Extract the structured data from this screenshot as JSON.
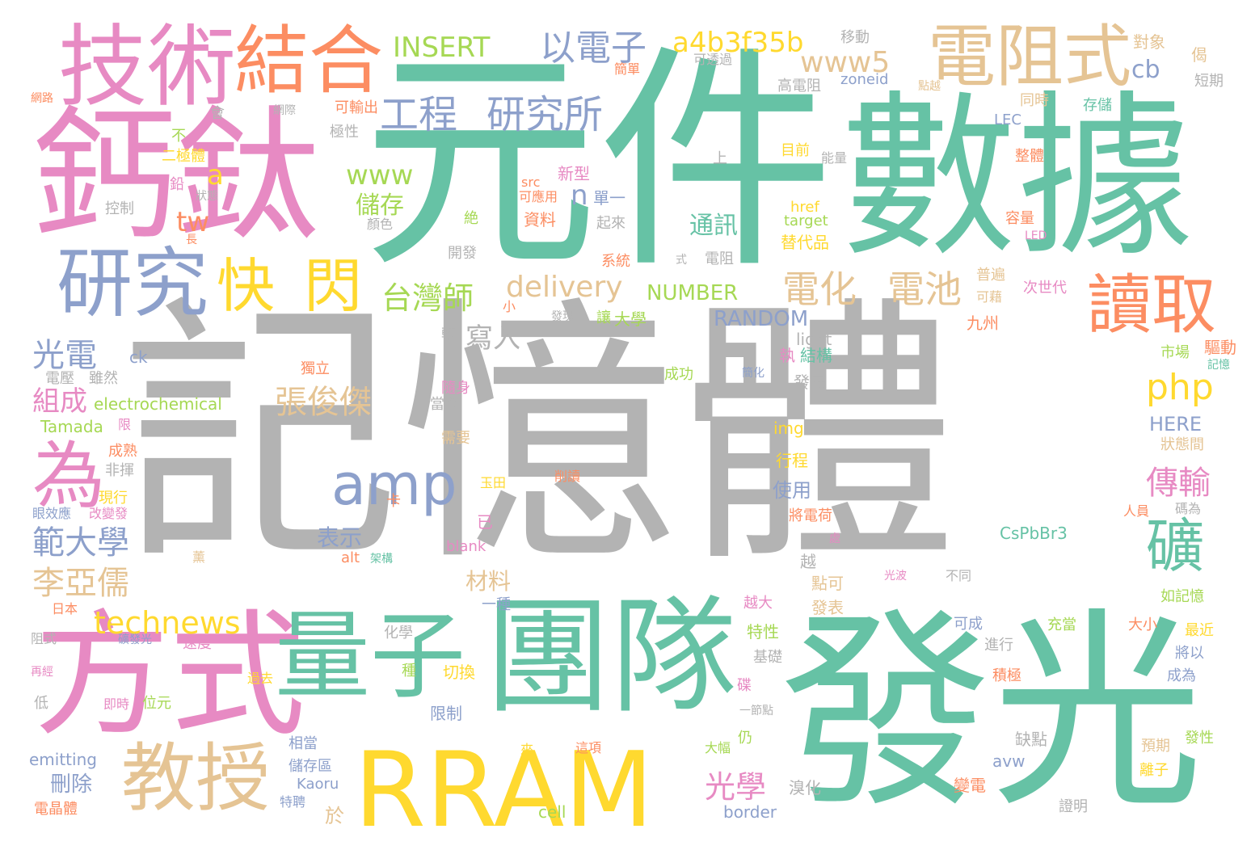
{
  "colors": {
    "green": "#66c2a5",
    "orange": "#fc8d62",
    "blue": "#8da0cb",
    "pink": "#e78ac3",
    "lime": "#a6d854",
    "yellow": "#ffd92f",
    "tan": "#e5c494",
    "gray": "#b3b3b3"
  },
  "words": [
    {
      "text": "記憶體",
      "color": "gray"
    },
    {
      "text": "元件",
      "color": "green"
    },
    {
      "text": "數據",
      "color": "green"
    },
    {
      "text": "發光",
      "color": "green"
    },
    {
      "text": "團隊",
      "color": "green"
    },
    {
      "text": "RRAM",
      "color": "yellow"
    },
    {
      "text": "鈣鈦",
      "color": "pink"
    },
    {
      "text": "方式",
      "color": "pink"
    },
    {
      "text": "技術",
      "color": "pink"
    },
    {
      "text": "結合",
      "color": "orange"
    },
    {
      "text": "電阻式",
      "color": "tan"
    },
    {
      "text": "量子",
      "color": "green"
    },
    {
      "text": "研究",
      "color": "blue"
    },
    {
      "text": "教授",
      "color": "tan"
    },
    {
      "text": "讀取",
      "color": "orange"
    },
    {
      "text": "快",
      "color": "yellow"
    },
    {
      "text": "閃",
      "color": "yellow"
    },
    {
      "text": "amp",
      "color": "blue"
    },
    {
      "text": "為",
      "color": "pink"
    },
    {
      "text": "工程",
      "color": "blue"
    },
    {
      "text": "研究所",
      "color": "blue"
    },
    {
      "text": "以電子",
      "color": "blue"
    },
    {
      "text": "a4b3f35b",
      "color": "yellow"
    },
    {
      "text": "INSERT",
      "color": "lime"
    },
    {
      "text": "www5",
      "color": "tan"
    },
    {
      "text": "電化",
      "color": "tan"
    },
    {
      "text": "電池",
      "color": "tan"
    },
    {
      "text": "delivery",
      "color": "tan"
    },
    {
      "text": "NUMBER",
      "color": "lime"
    },
    {
      "text": "RANDOM",
      "color": "blue"
    },
    {
      "text": "台灣師",
      "color": "lime"
    },
    {
      "text": "通訊",
      "color": "green"
    },
    {
      "text": "www",
      "color": "lime"
    },
    {
      "text": "儲存",
      "color": "lime"
    },
    {
      "text": "n",
      "color": "blue"
    },
    {
      "text": "單一",
      "color": "blue"
    },
    {
      "text": "新型",
      "color": "pink"
    },
    {
      "text": "a",
      "color": "yellow"
    },
    {
      "text": "tw",
      "color": "orange"
    },
    {
      "text": "cb",
      "color": "blue"
    },
    {
      "text": "php",
      "color": "yellow"
    },
    {
      "text": "礦",
      "color": "green"
    },
    {
      "text": "傳輸",
      "color": "pink"
    },
    {
      "text": "光電",
      "color": "blue"
    },
    {
      "text": "張俊傑",
      "color": "tan"
    },
    {
      "text": "寫入",
      "color": "gray"
    },
    {
      "text": "technews",
      "color": "yellow"
    },
    {
      "text": "範大學",
      "color": "blue"
    },
    {
      "text": "李亞儒",
      "color": "tan"
    },
    {
      "text": "組成",
      "color": "pink"
    },
    {
      "text": "表示",
      "color": "blue"
    },
    {
      "text": "材料",
      "color": "tan"
    },
    {
      "text": "光學",
      "color": "pink"
    },
    {
      "text": "刪除",
      "color": "blue"
    },
    {
      "text": "於",
      "color": "tan"
    },
    {
      "text": "electrochemical",
      "color": "lime"
    },
    {
      "text": "Tamada",
      "color": "lime"
    },
    {
      "text": "emitting",
      "color": "blue"
    },
    {
      "text": "Kaoru",
      "color": "blue"
    },
    {
      "text": "cell",
      "color": "lime"
    },
    {
      "text": "border",
      "color": "blue"
    },
    {
      "text": "CsPbBr3",
      "color": "green"
    },
    {
      "text": "HERE",
      "color": "blue"
    },
    {
      "text": "zoneid",
      "color": "blue"
    },
    {
      "text": "href",
      "color": "yellow"
    },
    {
      "text": "target",
      "color": "lime"
    },
    {
      "text": "src",
      "color": "orange"
    },
    {
      "text": "LEC",
      "color": "blue"
    },
    {
      "text": "light",
      "color": "gray"
    },
    {
      "text": "img",
      "color": "yellow"
    },
    {
      "text": "blank",
      "color": "pink"
    },
    {
      "text": "alt",
      "color": "orange"
    },
    {
      "text": "avw",
      "color": "blue"
    },
    {
      "text": "ck",
      "color": "blue"
    },
    {
      "text": "LED",
      "color": "pink"
    },
    {
      "text": "移動",
      "color": "gray"
    },
    {
      "text": "可透過",
      "color": "gray"
    },
    {
      "text": "簡單",
      "color": "orange"
    },
    {
      "text": "高電阻",
      "color": "gray"
    },
    {
      "text": "點越",
      "color": "tan"
    },
    {
      "text": "同時",
      "color": "tan"
    },
    {
      "text": "存儲",
      "color": "green"
    },
    {
      "text": "對象",
      "color": "tan"
    },
    {
      "text": "短期",
      "color": "gray"
    },
    {
      "text": "網路",
      "color": "orange"
    },
    {
      "text": "網際",
      "color": "gray"
    },
    {
      "text": "可輸出",
      "color": "orange"
    },
    {
      "text": "會",
      "color": "gray"
    },
    {
      "text": "不",
      "color": "lime"
    },
    {
      "text": "極性",
      "color": "gray"
    },
    {
      "text": "二極體",
      "color": "yellow"
    },
    {
      "text": "鉛",
      "color": "pink"
    },
    {
      "text": "狀態",
      "color": "gray"
    },
    {
      "text": "控制",
      "color": "gray"
    },
    {
      "text": "長",
      "color": "orange"
    },
    {
      "text": "上",
      "color": "gray"
    },
    {
      "text": "目前",
      "color": "yellow"
    },
    {
      "text": "能量",
      "color": "gray"
    },
    {
      "text": "整體",
      "color": "orange"
    },
    {
      "text": "可應用",
      "color": "orange"
    },
    {
      "text": "資料",
      "color": "orange"
    },
    {
      "text": "起來",
      "color": "gray"
    },
    {
      "text": "絶",
      "color": "lime"
    },
    {
      "text": "顏色",
      "color": "gray"
    },
    {
      "text": "開發",
      "color": "gray"
    },
    {
      "text": "系統",
      "color": "orange"
    },
    {
      "text": "式",
      "color": "gray"
    },
    {
      "text": "電阻",
      "color": "gray"
    },
    {
      "text": "替代品",
      "color": "yellow"
    },
    {
      "text": "容量",
      "color": "orange"
    },
    {
      "text": "普遍",
      "color": "tan"
    },
    {
      "text": "可藉",
      "color": "tan"
    },
    {
      "text": "次世代",
      "color": "pink"
    },
    {
      "text": "小",
      "color": "orange"
    },
    {
      "text": "發現",
      "color": "gray"
    },
    {
      "text": "讓",
      "color": "lime"
    },
    {
      "text": "大學",
      "color": "lime"
    },
    {
      "text": "九州",
      "color": "orange"
    },
    {
      "text": "市場",
      "color": "lime"
    },
    {
      "text": "驅動",
      "color": "orange"
    },
    {
      "text": "記憶",
      "color": "green"
    },
    {
      "text": "較",
      "color": "gray"
    },
    {
      "text": "執",
      "color": "pink"
    },
    {
      "text": "結構",
      "color": "green"
    },
    {
      "text": "獨立",
      "color": "orange"
    },
    {
      "text": "成功",
      "color": "lime"
    },
    {
      "text": "簡化",
      "color": "blue"
    },
    {
      "text": "發展",
      "color": "gray"
    },
    {
      "text": "電壓",
      "color": "gray"
    },
    {
      "text": "雖然",
      "color": "gray"
    },
    {
      "text": "隨身",
      "color": "pink"
    },
    {
      "text": "當今",
      "color": "gray"
    },
    {
      "text": "限",
      "color": "pink"
    },
    {
      "text": "需要",
      "color": "tan"
    },
    {
      "text": "成熟",
      "color": "orange"
    },
    {
      "text": "非揮",
      "color": "gray"
    },
    {
      "text": "狀態間",
      "color": "tan"
    },
    {
      "text": "行程",
      "color": "yellow"
    },
    {
      "text": "使用",
      "color": "blue"
    },
    {
      "text": "現行",
      "color": "yellow"
    },
    {
      "text": "玉田",
      "color": "yellow"
    },
    {
      "text": "削讀",
      "color": "orange"
    },
    {
      "text": "碼為",
      "color": "gray"
    },
    {
      "text": "眼效應",
      "color": "blue"
    },
    {
      "text": "改變發",
      "color": "pink"
    },
    {
      "text": "人員",
      "color": "orange"
    },
    {
      "text": "卡",
      "color": "orange"
    },
    {
      "text": "已",
      "color": "pink"
    },
    {
      "text": "將電荷",
      "color": "orange"
    },
    {
      "text": "薰",
      "color": "tan"
    },
    {
      "text": "架構",
      "color": "green"
    },
    {
      "text": "處",
      "color": "pink"
    },
    {
      "text": "越",
      "color": "gray"
    },
    {
      "text": "點可",
      "color": "tan"
    },
    {
      "text": "日本",
      "color": "orange"
    },
    {
      "text": "光波",
      "color": "pink"
    },
    {
      "text": "不同",
      "color": "gray"
    },
    {
      "text": "如記憶",
      "color": "lime"
    },
    {
      "text": "一種",
      "color": "blue"
    },
    {
      "text": "越大",
      "color": "pink"
    },
    {
      "text": "發表",
      "color": "tan"
    },
    {
      "text": "化學",
      "color": "gray"
    },
    {
      "text": "可成",
      "color": "blue"
    },
    {
      "text": "充當",
      "color": "lime"
    },
    {
      "text": "大小",
      "color": "orange"
    },
    {
      "text": "最近",
      "color": "yellow"
    },
    {
      "text": "阻式",
      "color": "gray"
    },
    {
      "text": "礦發光",
      "color": "blue"
    },
    {
      "text": "速度",
      "color": "pink"
    },
    {
      "text": "特性",
      "color": "lime"
    },
    {
      "text": "基礎",
      "color": "gray"
    },
    {
      "text": "進行",
      "color": "gray"
    },
    {
      "text": "積極",
      "color": "orange"
    },
    {
      "text": "將以",
      "color": "blue"
    },
    {
      "text": "成為",
      "color": "blue"
    },
    {
      "text": "再經",
      "color": "pink"
    },
    {
      "text": "過去",
      "color": "yellow"
    },
    {
      "text": "種",
      "color": "lime"
    },
    {
      "text": "切換",
      "color": "yellow"
    },
    {
      "text": "碟",
      "color": "pink"
    },
    {
      "text": "低",
      "color": "gray"
    },
    {
      "text": "即時",
      "color": "pink"
    },
    {
      "text": "位元",
      "color": "lime"
    },
    {
      "text": "限制",
      "color": "blue"
    },
    {
      "text": "一節點",
      "color": "gray"
    },
    {
      "text": "相當",
      "color": "blue"
    },
    {
      "text": "仍",
      "color": "lime"
    },
    {
      "text": "大幅",
      "color": "lime"
    },
    {
      "text": "缺點",
      "color": "gray"
    },
    {
      "text": "預期",
      "color": "tan"
    },
    {
      "text": "發性",
      "color": "lime"
    },
    {
      "text": "來",
      "color": "yellow"
    },
    {
      "text": "這項",
      "color": "orange"
    },
    {
      "text": "儲存區",
      "color": "blue"
    },
    {
      "text": "離子",
      "color": "yellow"
    },
    {
      "text": "溴化",
      "color": "gray"
    },
    {
      "text": "變電",
      "color": "orange"
    },
    {
      "text": "特聘",
      "color": "blue"
    },
    {
      "text": "電晶體",
      "color": "orange"
    },
    {
      "text": "證明",
      "color": "gray"
    },
    {
      "text": "偈",
      "color": "tan"
    }
  ]
}
